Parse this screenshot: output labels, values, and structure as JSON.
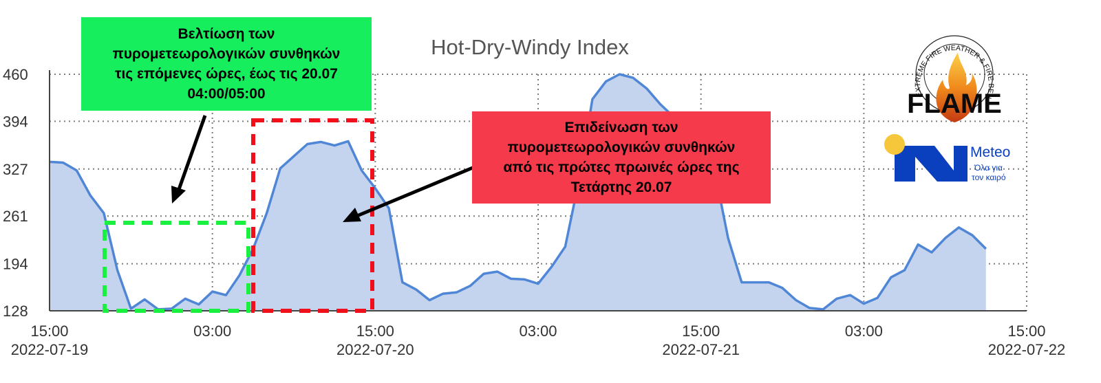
{
  "chart_data": {
    "type": "area",
    "title": "Hot-Dry-Windy Index",
    "ylim": [
      128,
      460
    ],
    "yticks": [
      460,
      394,
      327,
      261,
      194,
      128
    ],
    "x_start": "2022-07-19 15:00",
    "step_hours": 1,
    "xticks": [
      {
        "time": "15:00",
        "date": "2022-07-19",
        "offset_hours": 0
      },
      {
        "time": "03:00",
        "date": "",
        "offset_hours": 12
      },
      {
        "time": "15:00",
        "date": "2022-07-20",
        "offset_hours": 24
      },
      {
        "time": "03:00",
        "date": "",
        "offset_hours": 36
      },
      {
        "time": "15:00",
        "date": "2022-07-21",
        "offset_hours": 48
      },
      {
        "time": "03:00",
        "date": "",
        "offset_hours": 60
      },
      {
        "time": "15:00",
        "date": "2022-07-22",
        "offset_hours": 72
      }
    ],
    "grid": true,
    "values": [
      337,
      336,
      325,
      290,
      265,
      185,
      131,
      144,
      130,
      131,
      145,
      137,
      155,
      150,
      178,
      215,
      265,
      328,
      345,
      362,
      365,
      360,
      366,
      325,
      300,
      272,
      168,
      158,
      143,
      152,
      154,
      163,
      180,
      183,
      173,
      172,
      166,
      190,
      218,
      310,
      425,
      450,
      460,
      455,
      440,
      418,
      400,
      388,
      360,
      325,
      230,
      168,
      168,
      168,
      160,
      143,
      132,
      130,
      145,
      150,
      138,
      146,
      175,
      185,
      221,
      210,
      230,
      245,
      234,
      215
    ],
    "colors": {
      "fill": "#c5d4ee",
      "line": "#4f86d6",
      "grid": "#7a7a7a"
    }
  },
  "annotations": {
    "improvement_lines": [
      "Βελτίωση των",
      "πυρομετεωρολογικών συνθηκών",
      "τις επόμενες ώρες, έως τις 20.07",
      "04:00/05:00"
    ],
    "worsening_lines": [
      "Επιδείνωση των",
      "πυρομετεωρολογικών συνθηκών",
      "από τις πρώτες πρωινές ώρες της",
      "Τετάρτης 20.07"
    ],
    "colors": {
      "green_box": "#16ee5e",
      "green_dash": "#19f03f",
      "red_box": "#f43a4b",
      "red_dash": "#f0101c"
    }
  },
  "logos": {
    "flame_ring_text": "EXTREME FIRE WEATHER & FIRE BEHAVIOUR",
    "flame_word": "FLAME",
    "meteo_name": "Meteo",
    "meteo_tagline_1": "Όλα για",
    "meteo_tagline_2": "τον καιρό",
    "meteo_color": "#0a3fbd",
    "meteo_sun_color": "#f6c73a"
  }
}
